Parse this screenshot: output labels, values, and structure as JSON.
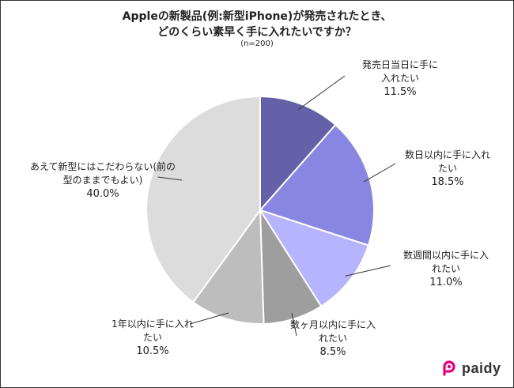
{
  "header": {
    "title_line1": "Appleの新製品(例:新型iPhone)が発売されたとき、",
    "title_line2": "どのくらい素早く手に入れたいですか？",
    "subtitle": "(n=200)"
  },
  "chart_data": {
    "type": "pie",
    "unit": "%",
    "slices": [
      {
        "label_lines": [
          "発売日当日に手に",
          "入れたい"
        ],
        "value": 11.5,
        "display": "11.5%",
        "color": "#6461a8"
      },
      {
        "label_lines": [
          "数日以内に手に入れ",
          "たい"
        ],
        "value": 18.5,
        "display": "18.5%",
        "color": "#8986e2"
      },
      {
        "label_lines": [
          "数週間以内に手に入",
          "れたい"
        ],
        "value": 11.0,
        "display": "11.0%",
        "color": "#b6b3ff"
      },
      {
        "label_lines": [
          "数ヶ月以内に手に入",
          "れたい"
        ],
        "value": 8.5,
        "display": "8.5%",
        "color": "#9e9e9e"
      },
      {
        "label_lines": [
          "1年以内に手に入れ",
          "たい"
        ],
        "value": 10.5,
        "display": "10.5%",
        "color": "#bdbdbd"
      },
      {
        "label_lines": [
          "あえて新型にはこだわらない(前の",
          "型のままでもよい)"
        ],
        "value": 40.0,
        "display": "40.0%",
        "color": "#dcdcdc"
      }
    ]
  },
  "brand": {
    "logo_text": "paidy",
    "logo_color": "#e4007f"
  }
}
